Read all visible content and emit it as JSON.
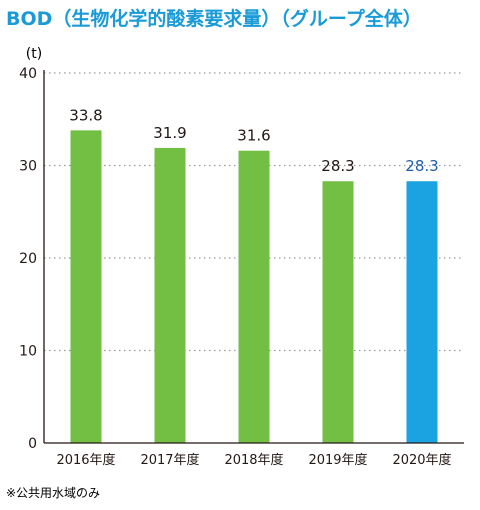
{
  "chart_data": {
    "type": "bar",
    "title": "BOD（生物化学的酸素要求量）（グループ全体）",
    "unit": "(t)",
    "categories": [
      "2016年度",
      "2017年度",
      "2018年度",
      "2019年度",
      "2020年度"
    ],
    "values": [
      33.8,
      31.9,
      31.6,
      28.3,
      28.3
    ],
    "value_labels": [
      "33.8",
      "31.9",
      "31.6",
      "28.3",
      "28.3"
    ],
    "ylim": [
      0,
      40
    ],
    "yticks": [
      0,
      10,
      20,
      30,
      40
    ],
    "ytick_labels": [
      "0",
      "10",
      "20",
      "30",
      "40"
    ],
    "grid": true,
    "colors": {
      "title": "#1a9bd7",
      "bar": "#72bf44",
      "highlight_bar": "#1aa3e0",
      "highlight_label": "#1f5fae",
      "text": "#231815",
      "grid": "#9a9a9a"
    },
    "highlight_index": 4,
    "footnote": "※公共用水域のみ"
  }
}
